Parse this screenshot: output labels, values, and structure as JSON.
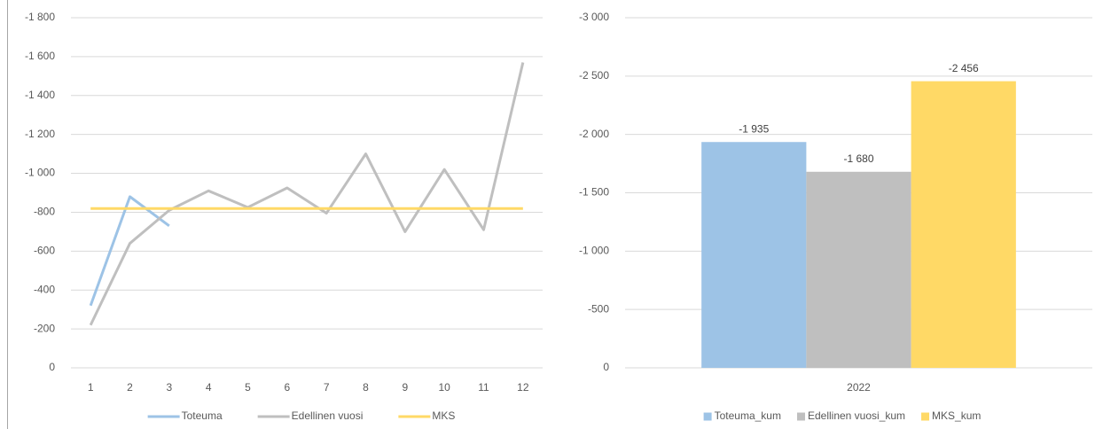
{
  "chart_data": [
    {
      "type": "line",
      "categories": [
        "1",
        "2",
        "3",
        "4",
        "5",
        "6",
        "7",
        "8",
        "9",
        "10",
        "11",
        "12"
      ],
      "series": [
        {
          "name": "Toteuma",
          "color": "#9dc3e6",
          "values": [
            -320,
            -880,
            -730,
            null,
            null,
            null,
            null,
            null,
            null,
            null,
            null,
            null
          ]
        },
        {
          "name": "Edellinen vuosi",
          "color": "#bfbfbf",
          "values": [
            -220,
            -640,
            -810,
            -910,
            -825,
            -925,
            -795,
            -1100,
            -700,
            -1020,
            -710,
            -1570
          ]
        },
        {
          "name": "MKS",
          "color": "#ffd966",
          "values": [
            -819,
            -819,
            -819,
            -819,
            -819,
            -819,
            -819,
            -819,
            -819,
            -819,
            -819,
            -819
          ]
        }
      ],
      "ylim": [
        0,
        -1800
      ],
      "yticks": [
        0,
        -200,
        -400,
        -600,
        -800,
        {
          "value": -1000,
          "label": "-1 000"
        },
        {
          "value": -1200,
          "label": "-1 200"
        },
        {
          "value": -1400,
          "label": "-1 400"
        },
        {
          "value": -1600,
          "label": "-1 600"
        },
        {
          "value": -1800,
          "label": "-1 800"
        }
      ],
      "grid": true,
      "legend": "bottom"
    },
    {
      "type": "bar",
      "categories": [
        "2022"
      ],
      "series": [
        {
          "name": "Toteuma_kum",
          "color": "#9dc3e6",
          "values": [
            -1935
          ],
          "value_labels": [
            "-1 935"
          ]
        },
        {
          "name": "Edellinen vuosi_kum",
          "color": "#bfbfbf",
          "values": [
            -1680
          ],
          "value_labels": [
            "-1 680"
          ]
        },
        {
          "name": "MKS_kum",
          "color": "#ffd966",
          "values": [
            -2456
          ],
          "value_labels": [
            "-2 456"
          ]
        }
      ],
      "ylim": [
        0,
        -3000
      ],
      "yticks": [
        0,
        -500,
        {
          "value": -1000,
          "label": "-1 000"
        },
        {
          "value": -1500,
          "label": "-1 500"
        },
        {
          "value": -2000,
          "label": "-2 000"
        },
        {
          "value": -2500,
          "label": "-2 500"
        },
        {
          "value": -3000,
          "label": "-3 000"
        }
      ],
      "grid": true,
      "legend": "bottom"
    }
  ]
}
